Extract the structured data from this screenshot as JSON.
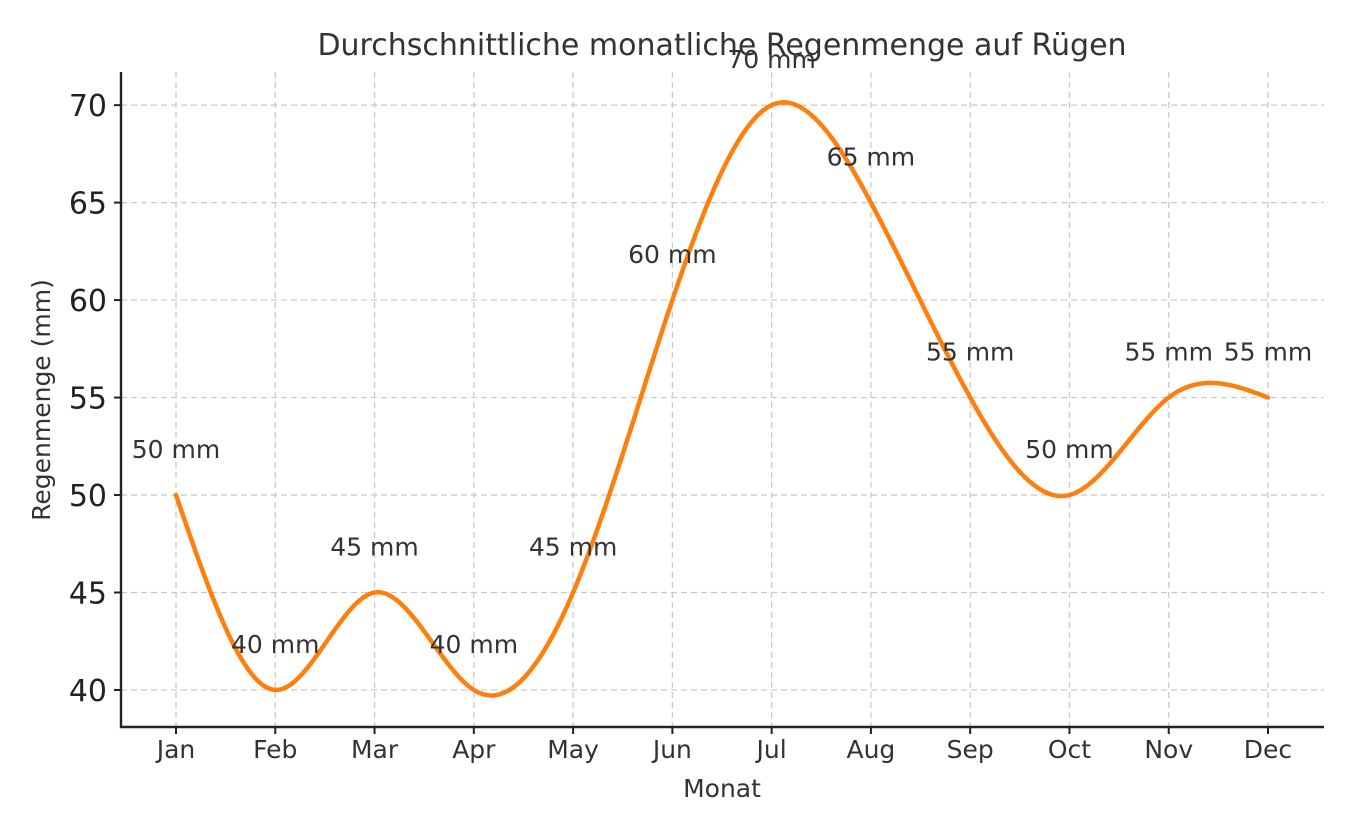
{
  "chart_data": {
    "type": "line",
    "title": "Durchschnittliche monatliche Regenmenge auf Rügen",
    "xlabel": "Monat",
    "ylabel": "Regenmenge (mm)",
    "categories": [
      "Jan",
      "Feb",
      "Mar",
      "Apr",
      "May",
      "Jun",
      "Jul",
      "Aug",
      "Sep",
      "Oct",
      "Nov",
      "Dec"
    ],
    "values": [
      50,
      40,
      45,
      40,
      45,
      60,
      70,
      65,
      55,
      50,
      55,
      55
    ],
    "data_labels": [
      "50 mm",
      "40 mm",
      "45 mm",
      "40 mm",
      "45 mm",
      "60 mm",
      "70 mm",
      "65 mm",
      "55 mm",
      "50 mm",
      "55 mm",
      "55 mm"
    ],
    "yticks": [
      40,
      45,
      50,
      55,
      60,
      65,
      70
    ],
    "ylim": [
      38.1,
      71.7
    ],
    "grid": true,
    "smoothed": true,
    "line_color": "#ff7f0e"
  }
}
